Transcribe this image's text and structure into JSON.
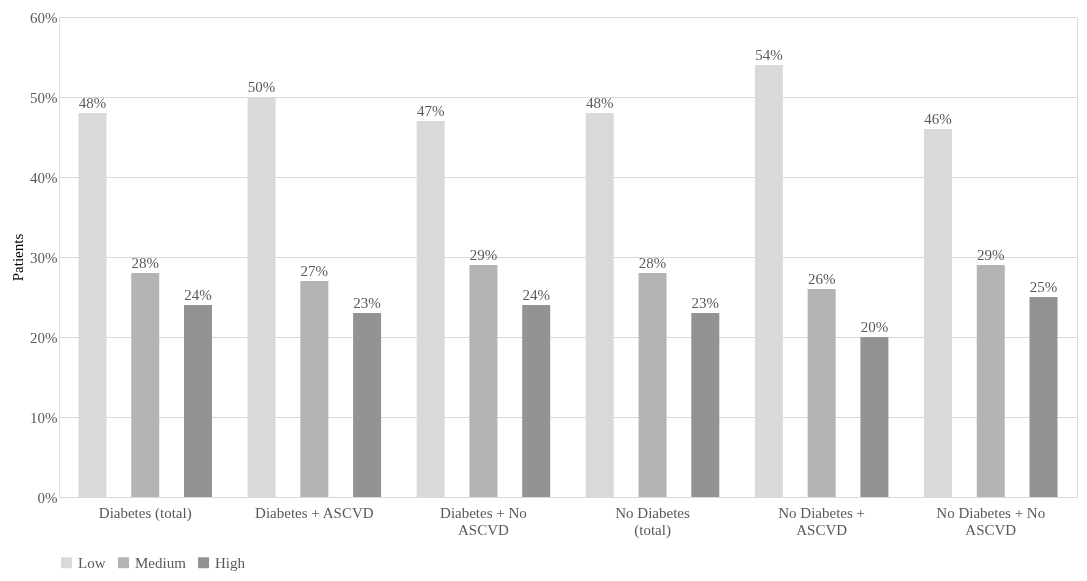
{
  "chart_data": {
    "type": "bar",
    "ylabel": "Patients",
    "categories": [
      "Diabetes (total)",
      "Diabetes + ASCVD",
      "Diabetes + No ASCVD",
      "No Diabetes (total)",
      "No Diabetes + ASCVD",
      "No Diabetes + No ASCVD"
    ],
    "series": [
      {
        "name": "Low",
        "color": "#d9d9da",
        "values": [
          48,
          50,
          47,
          48,
          54,
          46
        ],
        "value_labels": [
          "48%",
          "50%",
          "47%",
          "48%",
          "54%",
          "46%"
        ]
      },
      {
        "name": "Medium",
        "color": "#b4b4b6",
        "values": [
          28,
          27,
          29,
          28,
          26,
          29
        ],
        "value_labels": [
          "28%",
          "27%",
          "29%",
          "28%",
          "26%",
          "29%"
        ]
      },
      {
        "name": "High",
        "color": "#939396",
        "values": [
          24,
          23,
          24,
          23,
          20,
          25
        ],
        "value_labels": [
          "24%",
          "23%",
          "24%",
          "23%",
          "20%",
          "25%"
        ]
      }
    ],
    "ylim": [
      0,
      60
    ],
    "yticks": [
      {
        "value": 0,
        "label": "0%"
      },
      {
        "value": 10,
        "label": "10%"
      },
      {
        "value": 20,
        "label": "20%"
      },
      {
        "value": 30,
        "label": "30%"
      },
      {
        "value": 40,
        "label": "40%"
      },
      {
        "value": 50,
        "label": "50%"
      },
      {
        "value": 60,
        "label": "60%"
      }
    ],
    "grid": "y",
    "legend": "bottom"
  }
}
